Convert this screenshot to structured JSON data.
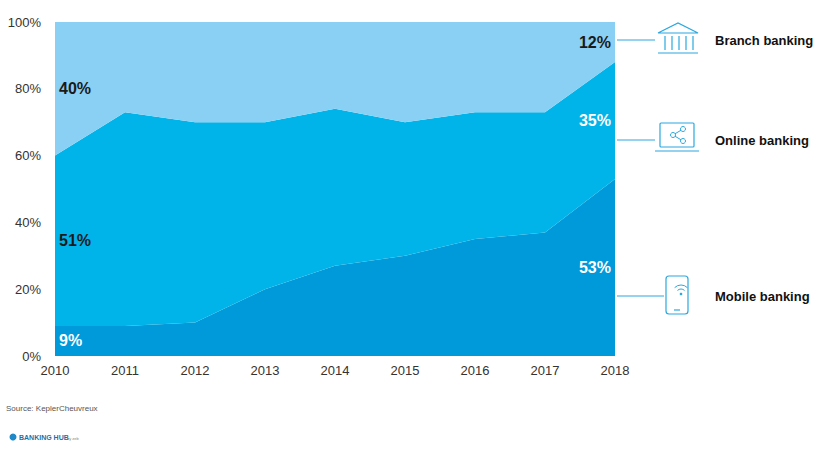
{
  "chart_data": {
    "type": "area",
    "categories": [
      "2010",
      "2011",
      "2012",
      "2013",
      "2014",
      "2015",
      "2016",
      "2017",
      "2018"
    ],
    "series": [
      {
        "name": "Mobile banking",
        "color": "#0099DA",
        "values": [
          9,
          9,
          10,
          20,
          27,
          30,
          35,
          37,
          53
        ],
        "value_labels": [
          "9%",
          null,
          null,
          null,
          null,
          null,
          null,
          null,
          "53%"
        ]
      },
      {
        "name": "Online banking",
        "color": "#00B4EA",
        "values": [
          51,
          64,
          60,
          50,
          47,
          40,
          38,
          36,
          35
        ],
        "value_labels": [
          "51%",
          null,
          null,
          null,
          null,
          null,
          null,
          null,
          "35%"
        ]
      },
      {
        "name": "Branch banking",
        "color": "#8AD0F4",
        "values": [
          40,
          27,
          30,
          30,
          26,
          30,
          27,
          27,
          12
        ],
        "value_labels": [
          "40%",
          null,
          null,
          null,
          null,
          null,
          null,
          null,
          "12%"
        ]
      }
    ],
    "ylim": [
      0,
      100
    ],
    "yticks": [
      {
        "value": 0,
        "label": "0%"
      },
      {
        "value": 20,
        "label": "20%"
      },
      {
        "value": 40,
        "label": "40%"
      },
      {
        "value": 60,
        "label": "60%"
      },
      {
        "value": 80,
        "label": "80%"
      },
      {
        "value": 100,
        "label": "100%"
      }
    ],
    "grid": false,
    "stacked": true,
    "data_labels": true,
    "annotations": [
      "Source: KeplerCheuvreux",
      "BANKING HUB",
      "by zeb"
    ]
  }
}
